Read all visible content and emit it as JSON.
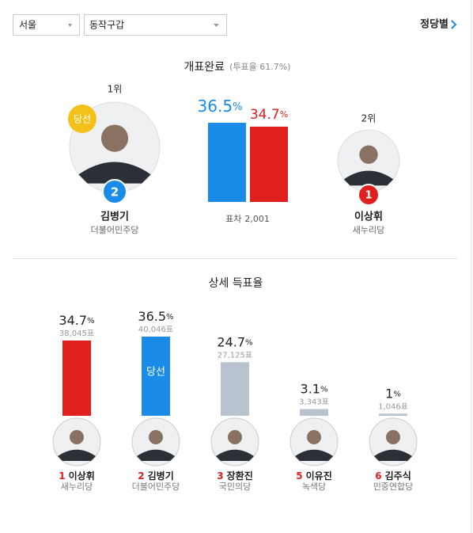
{
  "filters": {
    "region": "서울",
    "district": "동작구갑",
    "link": "정당별"
  },
  "summary": {
    "title": "개표완료",
    "turnout": "(투표율 61.7%)",
    "winner": {
      "rank": "1위",
      "badge": "당선",
      "number": "2",
      "name": "김병기",
      "party": "더불어민주당",
      "percent": 36.5,
      "unit": "%",
      "color": "#1a8ce8"
    },
    "runner_up": {
      "rank": "2위",
      "number": "1",
      "name": "이상휘",
      "party": "새누리당",
      "percent": 34.7,
      "unit": "%",
      "color": "#e0201f"
    },
    "margin_label": "표차",
    "margin": "2,001"
  },
  "detail": {
    "title": "상세 득표율",
    "candidates": [
      {
        "number": "1",
        "name": "이상휘",
        "party": "새누리당",
        "percent": 34.7,
        "unit": "%",
        "votes": "38,045표",
        "color": "#e0201f"
      },
      {
        "number": "2",
        "name": "김병기",
        "party": "더불어민주당",
        "percent": 36.5,
        "unit": "%",
        "votes": "40,046표",
        "color": "#1a8ce8",
        "badge": "당선"
      },
      {
        "number": "3",
        "name": "장환진",
        "party": "국민의당",
        "percent": 24.7,
        "unit": "%",
        "votes": "27,125표",
        "color": "#b9c3cf"
      },
      {
        "number": "5",
        "name": "이유진",
        "party": "녹색당",
        "percent": 3.1,
        "unit": "%",
        "votes": "3,343표",
        "color": "#b9c3cf"
      },
      {
        "number": "6",
        "name": "김주식",
        "party": "민중연합당",
        "percent": 1,
        "unit": "%",
        "votes": "1,046표",
        "color": "#b9c3cf"
      }
    ]
  }
}
